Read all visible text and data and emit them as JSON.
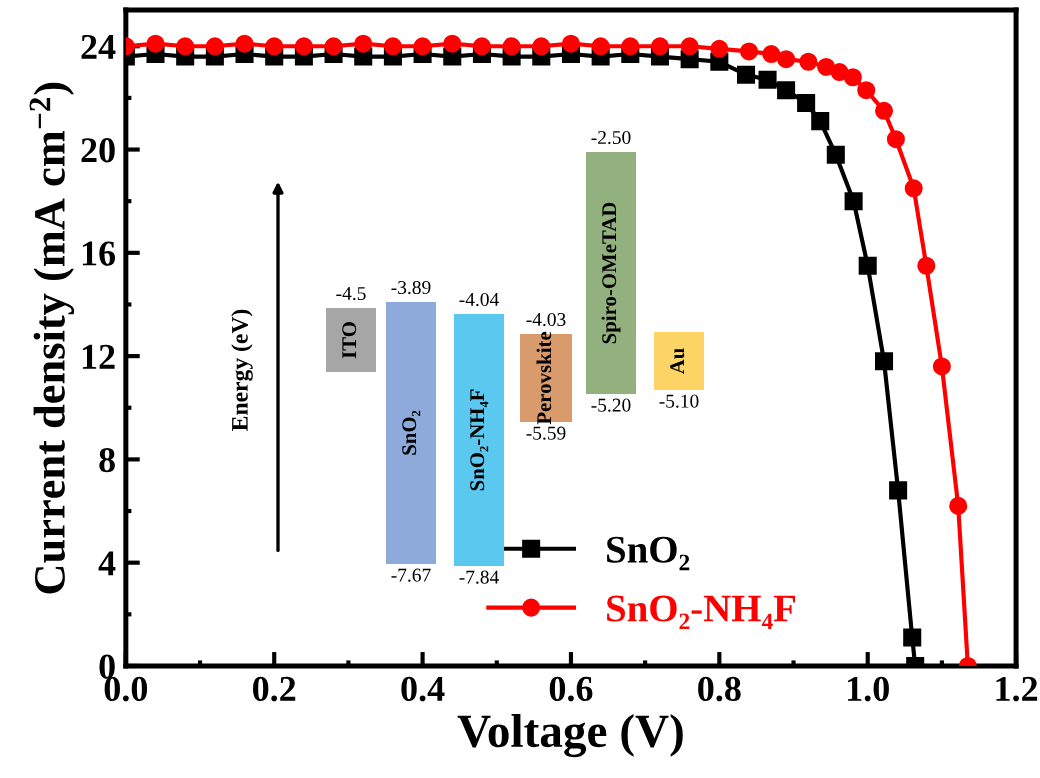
{
  "chart_data": [
    {
      "type": "line",
      "xlabel": "Voltage (V)",
      "ylabel": "Current density (mA cm$^{−2}$)",
      "xlim": [
        0,
        1.2
      ],
      "ylim": [
        0,
        25.4
      ],
      "xticks": [
        {
          "value": 0,
          "label": "0.0"
        },
        {
          "value": 0.2,
          "label": "0.2"
        },
        {
          "value": 0.4,
          "label": "0.4"
        },
        {
          "value": 0.6,
          "label": "0.6"
        },
        {
          "value": 0.8,
          "label": "0.8"
        },
        {
          "value": 1.0,
          "label": "1.0"
        },
        {
          "value": 1.2,
          "label": "1.2"
        }
      ],
      "yticks": [
        0,
        4,
        8,
        12,
        16,
        20,
        24
      ],
      "legend": "bottom right",
      "grid": false,
      "series": [
        {
          "name": "SnO₂",
          "color": "#000000",
          "marker": "square",
          "x": [
            0,
            0.04,
            0.08,
            0.12,
            0.16,
            0.2,
            0.24,
            0.28,
            0.32,
            0.36,
            0.4,
            0.44,
            0.48,
            0.52,
            0.56,
            0.6,
            0.64,
            0.68,
            0.72,
            0.76,
            0.8,
            0.836,
            0.865,
            0.89,
            0.917,
            0.936,
            0.957,
            0.981,
            1.0,
            1.022,
            1.041,
            1.06,
            1.064
          ],
          "values": [
            23.6,
            23.7,
            23.6,
            23.6,
            23.7,
            23.6,
            23.6,
            23.7,
            23.6,
            23.6,
            23.7,
            23.6,
            23.7,
            23.6,
            23.6,
            23.7,
            23.6,
            23.7,
            23.6,
            23.5,
            23.4,
            22.9,
            22.7,
            22.3,
            21.8,
            21.1,
            19.8,
            18.0,
            15.5,
            11.8,
            6.8,
            1.1,
            0
          ]
        },
        {
          "name": "SnO₂-NH₄F",
          "color": "#ff0000",
          "marker": "circle",
          "x": [
            0,
            0.04,
            0.08,
            0.12,
            0.16,
            0.2,
            0.24,
            0.28,
            0.32,
            0.36,
            0.4,
            0.44,
            0.48,
            0.52,
            0.56,
            0.6,
            0.64,
            0.68,
            0.72,
            0.76,
            0.8,
            0.84,
            0.87,
            0.89,
            0.92,
            0.944,
            0.962,
            0.98,
            0.998,
            1.022,
            1.038,
            1.062,
            1.079,
            1.1,
            1.122,
            1.135
          ],
          "values": [
            24.0,
            24.1,
            24.0,
            24.0,
            24.1,
            24.0,
            24.0,
            24.0,
            24.1,
            24.0,
            24.0,
            24.1,
            24.0,
            24.0,
            24.0,
            24.1,
            24.0,
            24.0,
            24.0,
            24.0,
            23.9,
            23.8,
            23.7,
            23.5,
            23.4,
            23.2,
            23.0,
            22.8,
            22.3,
            21.5,
            20.4,
            18.5,
            15.5,
            11.6,
            6.2,
            0
          ]
        }
      ]
    },
    {
      "type": "other",
      "ylabel": "Energy (eV)",
      "categories": [
        "ITO",
        "SnO₂",
        "SnO₂-NH₄F",
        "Perovskite",
        "Spiro-OMeTAD",
        "Au"
      ],
      "colors": [
        "#a6a6a6",
        "#8eaadb",
        "#5bc8f0",
        "#d99a6c",
        "#93b17e",
        "#fcd466"
      ],
      "annotations": [
        "-4.5",
        "-3.89",
        "-7.67",
        "-4.04",
        "-7.84",
        "-4.03",
        "-5.59",
        "-2.50",
        "-5.20",
        "-5.10"
      ]
    }
  ]
}
